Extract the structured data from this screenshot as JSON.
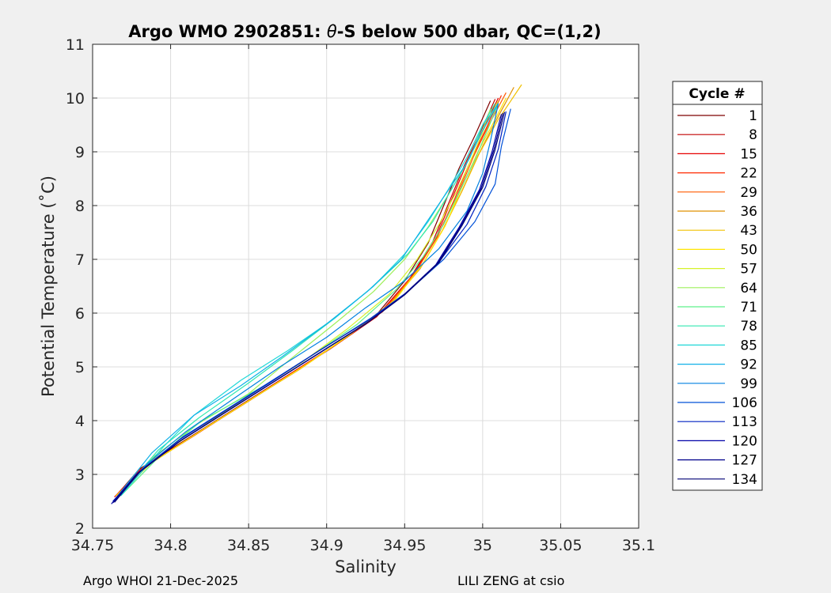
{
  "chart_data": {
    "type": "line",
    "title_prefix": "Argo WMO 2902851: ",
    "title_theta": "θ",
    "title_suffix": "-S below 500 dbar,  QC=(1,2)",
    "xlabel": "Salinity",
    "ylabel": "Potential Temperature (˚C)",
    "xlim": [
      34.75,
      35.1
    ],
    "ylim": [
      2,
      11
    ],
    "x_ticks": [
      34.75,
      34.8,
      34.85,
      34.9,
      34.95,
      35,
      35.05,
      35.1
    ],
    "x_tick_labels": [
      "34.75",
      "34.8",
      "34.85",
      "34.9",
      "34.95",
      "35",
      "35.05",
      "35.1"
    ],
    "y_ticks": [
      2,
      3,
      4,
      5,
      6,
      7,
      8,
      9,
      10,
      11
    ],
    "y_tick_labels": [
      "2",
      "3",
      "4",
      "5",
      "6",
      "7",
      "8",
      "9",
      "10",
      "11"
    ],
    "grid": true,
    "legend_position": "right",
    "legend": {
      "title": "Cycle #",
      "entries": [
        {
          "label": "1",
          "color": "#7f0000"
        },
        {
          "label": "8",
          "color": "#c00000"
        },
        {
          "label": "15",
          "color": "#e60000"
        },
        {
          "label": "22",
          "color": "#ff2a00"
        },
        {
          "label": "29",
          "color": "#ff5a00"
        },
        {
          "label": "36",
          "color": "#e09000"
        },
        {
          "label": "43",
          "color": "#f0c000"
        },
        {
          "label": "50",
          "color": "#ffe600"
        },
        {
          "label": "57",
          "color": "#d6f22a"
        },
        {
          "label": "64",
          "color": "#9ef05a"
        },
        {
          "label": "71",
          "color": "#5ef08a"
        },
        {
          "label": "78",
          "color": "#30e8b0"
        },
        {
          "label": "85",
          "color": "#20d8d8"
        },
        {
          "label": "92",
          "color": "#10b0e8"
        },
        {
          "label": "99",
          "color": "#0080e0"
        },
        {
          "label": "106",
          "color": "#0050d8"
        },
        {
          "label": "113",
          "color": "#0020c0"
        },
        {
          "label": "120",
          "color": "#0000a8"
        },
        {
          "label": "127",
          "color": "#00008c"
        },
        {
          "label": "134",
          "color": "#000075"
        }
      ]
    },
    "series": [
      {
        "label": "1",
        "color": "#7f0000",
        "salinity": [
          34.765,
          34.78,
          34.81,
          34.84,
          34.87,
          34.9,
          34.93,
          34.95,
          34.965,
          34.975,
          34.985,
          34.995,
          35.005
        ],
        "theta": [
          2.6,
          3.1,
          3.65,
          4.2,
          4.75,
          5.3,
          5.9,
          6.6,
          7.3,
          8.0,
          8.7,
          9.3,
          9.95
        ]
      },
      {
        "label": "8",
        "color": "#c00000",
        "salinity": [
          34.765,
          34.782,
          34.812,
          34.842,
          34.872,
          34.902,
          34.932,
          34.953,
          34.968,
          34.978,
          34.988,
          34.998,
          35.008
        ],
        "theta": [
          2.6,
          3.12,
          3.68,
          4.23,
          4.78,
          5.33,
          5.93,
          6.63,
          7.33,
          8.03,
          8.73,
          9.33,
          9.98
        ]
      },
      {
        "label": "15",
        "color": "#e60000",
        "salinity": [
          34.764,
          34.781,
          34.814,
          34.845,
          34.875,
          34.905,
          34.934,
          34.955,
          34.97,
          34.98,
          34.99,
          35.0,
          35.01
        ],
        "theta": [
          2.58,
          3.1,
          3.7,
          4.28,
          4.84,
          5.4,
          6.0,
          6.7,
          7.4,
          8.1,
          8.8,
          9.4,
          10.0
        ]
      },
      {
        "label": "22",
        "color": "#ff2a00",
        "salinity": [
          34.766,
          34.784,
          34.815,
          34.846,
          34.877,
          34.907,
          34.936,
          34.956,
          34.971,
          34.982,
          34.992,
          35.002,
          35.012
        ],
        "theta": [
          2.62,
          3.15,
          3.72,
          4.3,
          4.86,
          5.43,
          6.03,
          6.72,
          7.42,
          8.12,
          8.82,
          9.42,
          10.05
        ]
      },
      {
        "label": "29",
        "color": "#ff5a00",
        "salinity": [
          34.765,
          34.783,
          34.817,
          34.85,
          34.88,
          34.91,
          34.938,
          34.958,
          34.972,
          34.984,
          34.994,
          35.004,
          35.015
        ],
        "theta": [
          2.6,
          3.13,
          3.76,
          4.36,
          4.92,
          5.5,
          6.1,
          6.8,
          7.5,
          8.2,
          8.9,
          9.5,
          10.1
        ]
      },
      {
        "label": "36",
        "color": "#e09000",
        "salinity": [
          34.766,
          34.786,
          34.819,
          34.852,
          34.883,
          34.912,
          34.94,
          34.96,
          34.974,
          34.986,
          34.997,
          35.008,
          35.02
        ],
        "theta": [
          2.62,
          3.18,
          3.8,
          4.4,
          4.96,
          5.54,
          6.14,
          6.83,
          7.53,
          8.23,
          8.93,
          9.55,
          10.2
        ]
      },
      {
        "label": "43",
        "color": "#f0c000",
        "salinity": [
          34.767,
          34.788,
          34.821,
          34.854,
          34.886,
          34.915,
          34.942,
          34.961,
          34.975,
          34.987,
          34.998,
          35.01,
          35.025
        ],
        "theta": [
          2.64,
          3.22,
          3.84,
          4.44,
          5.02,
          5.6,
          6.2,
          6.88,
          7.58,
          8.28,
          8.98,
          9.6,
          10.25
        ]
      },
      {
        "label": "50",
        "color": "#ffe600",
        "salinity": [
          34.765,
          34.787,
          34.822,
          34.856,
          34.888,
          34.917,
          34.944,
          34.962,
          34.976,
          34.986,
          34.997,
          35.008,
          35.015
        ],
        "theta": [
          2.6,
          3.2,
          3.86,
          4.48,
          5.06,
          5.65,
          6.25,
          6.93,
          7.62,
          8.3,
          9.0,
          9.6,
          10.0
        ]
      },
      {
        "label": "57",
        "color": "#d6f22a",
        "salinity": [
          34.766,
          34.79,
          34.822,
          34.855,
          34.885,
          34.913,
          34.94,
          34.958,
          34.972,
          34.984,
          34.994,
          35.002,
          35.01
        ],
        "theta": [
          2.6,
          3.3,
          3.92,
          4.55,
          5.1,
          5.7,
          6.35,
          7.0,
          7.65,
          8.3,
          8.95,
          9.5,
          9.95
        ]
      },
      {
        "label": "64",
        "color": "#9ef05a",
        "salinity": [
          34.765,
          34.79,
          34.818,
          34.85,
          34.875,
          34.905,
          34.93,
          34.95,
          34.965,
          34.978,
          34.99,
          35.0,
          35.005
        ],
        "theta": [
          2.55,
          3.35,
          3.95,
          4.5,
          5.1,
          5.8,
          6.4,
          7.0,
          7.6,
          8.2,
          8.8,
          9.4,
          9.8
        ]
      },
      {
        "label": "71",
        "color": "#5ef08a",
        "salinity": [
          34.768,
          34.795,
          34.82,
          34.86,
          34.89,
          34.92,
          34.945,
          34.962,
          34.975,
          34.985,
          34.995,
          35.003,
          35.01
        ],
        "theta": [
          2.6,
          3.4,
          4.0,
          4.65,
          5.2,
          5.8,
          6.45,
          7.05,
          7.65,
          8.25,
          8.85,
          9.4,
          9.9
        ]
      },
      {
        "label": "78",
        "color": "#30e8b0",
        "salinity": [
          34.767,
          34.792,
          34.818,
          34.85,
          34.878,
          34.905,
          34.93,
          34.952,
          34.968,
          34.98,
          34.992,
          35.0,
          35.008
        ],
        "theta": [
          2.6,
          3.45,
          4.05,
          4.7,
          5.3,
          5.9,
          6.5,
          7.1,
          7.7,
          8.3,
          8.9,
          9.5,
          9.9
        ]
      },
      {
        "label": "85",
        "color": "#20d8d8",
        "salinity": [
          34.768,
          34.795,
          34.815,
          34.845,
          34.875,
          34.905,
          34.93,
          34.95,
          34.965,
          34.978,
          34.99,
          35.0,
          35.01
        ],
        "theta": [
          2.6,
          3.5,
          4.1,
          4.75,
          5.3,
          5.9,
          6.5,
          7.1,
          7.7,
          8.3,
          8.9,
          9.5,
          9.9
        ]
      },
      {
        "label": "92",
        "color": "#10b0e8",
        "salinity": [
          34.766,
          34.788,
          34.815,
          34.845,
          34.872,
          34.9,
          34.926,
          34.948,
          34.962,
          34.976,
          34.99,
          35.0,
          35.01
        ],
        "theta": [
          2.6,
          3.4,
          4.1,
          4.65,
          5.2,
          5.8,
          6.4,
          7.0,
          7.6,
          8.2,
          8.8,
          9.4,
          9.9
        ]
      },
      {
        "label": "99",
        "color": "#0080e0",
        "salinity": [
          34.765,
          34.785,
          34.81,
          34.84,
          34.87,
          34.9,
          34.925,
          34.95,
          34.972,
          34.99,
          35.0,
          35.005,
          35.01
        ],
        "theta": [
          2.55,
          3.2,
          3.8,
          4.4,
          5.0,
          5.55,
          6.1,
          6.6,
          7.2,
          7.9,
          8.6,
          9.2,
          9.9
        ]
      },
      {
        "label": "106",
        "color": "#0050d8",
        "salinity": [
          34.764,
          34.782,
          34.808,
          34.838,
          34.868,
          34.898,
          34.928,
          34.952,
          34.975,
          34.995,
          35.008,
          35.012,
          35.018
        ],
        "theta": [
          2.5,
          3.1,
          3.7,
          4.25,
          4.8,
          5.35,
          5.9,
          6.4,
          7.0,
          7.7,
          8.4,
          9.1,
          9.8
        ]
      },
      {
        "label": "113",
        "color": "#0020c0",
        "salinity": [
          34.763,
          34.78,
          34.806,
          34.836,
          34.866,
          34.895,
          34.926,
          34.95,
          34.972,
          34.99,
          35.002,
          35.01,
          35.015
        ],
        "theta": [
          2.5,
          3.05,
          3.65,
          4.2,
          4.75,
          5.3,
          5.85,
          6.35,
          6.95,
          7.65,
          8.35,
          9.05,
          9.75
        ]
      },
      {
        "label": "120",
        "color": "#0000a8",
        "salinity": [
          34.762,
          34.778,
          34.805,
          34.835,
          34.865,
          34.895,
          34.925,
          34.948,
          34.97,
          34.985,
          34.998,
          35.006,
          35.012
        ],
        "theta": [
          2.45,
          3.0,
          3.6,
          4.15,
          4.7,
          5.25,
          5.8,
          6.3,
          6.9,
          7.6,
          8.3,
          9.0,
          9.7
        ]
      },
      {
        "label": "127",
        "color": "#00008c",
        "salinity": [
          34.763,
          34.779,
          34.806,
          34.836,
          34.866,
          34.896,
          34.926,
          34.949,
          34.971,
          34.986,
          34.999,
          35.007,
          35.013
        ],
        "theta": [
          2.47,
          3.02,
          3.62,
          4.17,
          4.72,
          5.27,
          5.82,
          6.32,
          6.92,
          7.62,
          8.32,
          9.02,
          9.72
        ]
      },
      {
        "label": "134",
        "color": "#000075",
        "salinity": [
          34.764,
          34.78,
          34.807,
          34.837,
          34.867,
          34.897,
          34.927,
          34.95,
          34.972,
          34.987,
          35.0,
          35.008,
          35.014
        ],
        "theta": [
          2.48,
          3.04,
          3.64,
          4.19,
          4.74,
          5.29,
          5.84,
          6.34,
          6.94,
          7.64,
          8.34,
          9.04,
          9.74
        ]
      }
    ]
  },
  "footer": {
    "left": "Argo WHOI 21-Dec-2025",
    "right": "LILI ZENG at csio"
  }
}
